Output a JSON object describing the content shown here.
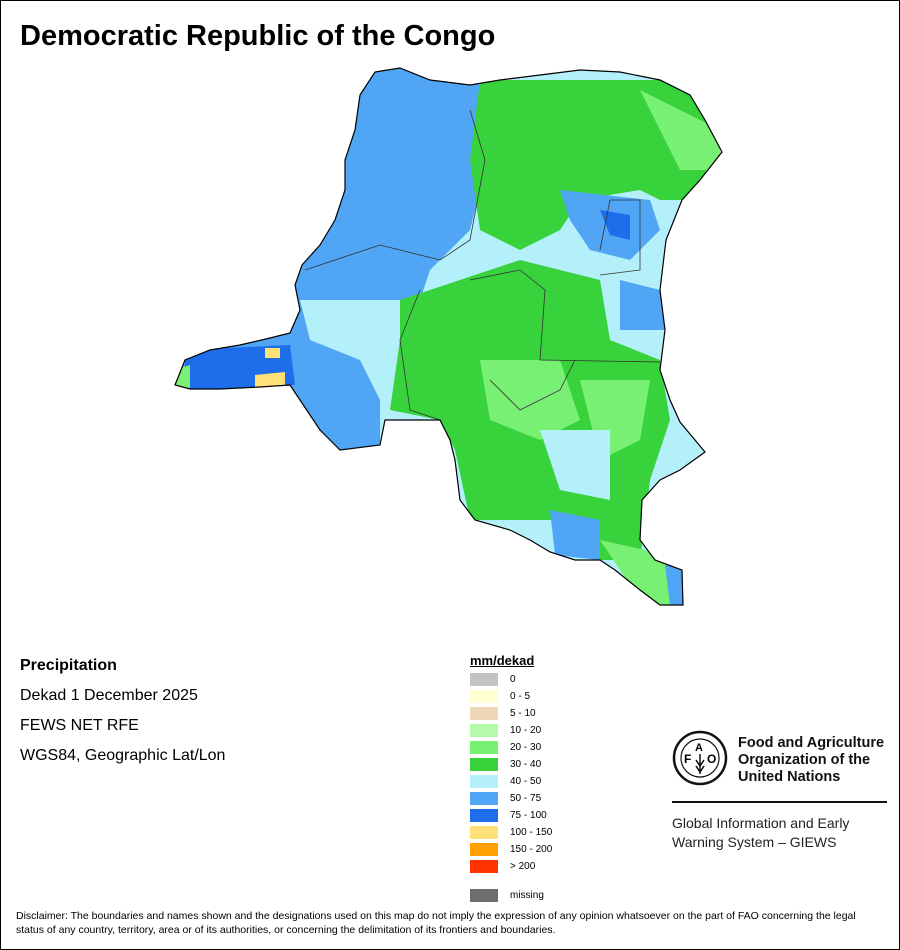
{
  "title": "Democratic Republic of the Congo",
  "info": {
    "variable": "Precipitation",
    "period": "Dekad 1 December 2025",
    "source": "FEWS NET RFE",
    "projection": "WGS84, Geographic Lat/Lon"
  },
  "legend": {
    "title": "mm/dekad",
    "items": [
      {
        "label": "0",
        "color": "#c3c3c3"
      },
      {
        "label": "0 - 5",
        "color": "#ffffd2"
      },
      {
        "label": "5 - 10",
        "color": "#eed8b6"
      },
      {
        "label": "10 - 20",
        "color": "#b4faaa"
      },
      {
        "label": "20 - 30",
        "color": "#78f073"
      },
      {
        "label": "30 - 40",
        "color": "#37d23c"
      },
      {
        "label": "40 - 50",
        "color": "#b4f0fa"
      },
      {
        "label": "50 - 75",
        "color": "#50a5f5"
      },
      {
        "label": "75 - 100",
        "color": "#1e6eeb"
      },
      {
        "label": "100 - 150",
        "color": "#ffe178"
      },
      {
        "label": "150 - 200",
        "color": "#ffa000"
      },
      {
        "label": "> 200",
        "color": "#ff3200"
      }
    ],
    "missing": {
      "label": "missing",
      "color": "#6e6e6e"
    }
  },
  "logo": {
    "letters": "FAO FIAT PANIS",
    "org_line1": "Food and Agriculture",
    "org_line2": "Organization of the",
    "org_line3": "United Nations",
    "giews_line1": "Global Information and Early",
    "giews_line2": "Warning System – GIEWS"
  },
  "disclaimer": "Disclaimer: The boundaries and names shown and the designations used on this map do not imply the expression of any opinion whatsoever on the part of FAO concerning the legal status of any country, territory, area or of its authorities, or concerning the delimitation of its frontiers and boundaries."
}
